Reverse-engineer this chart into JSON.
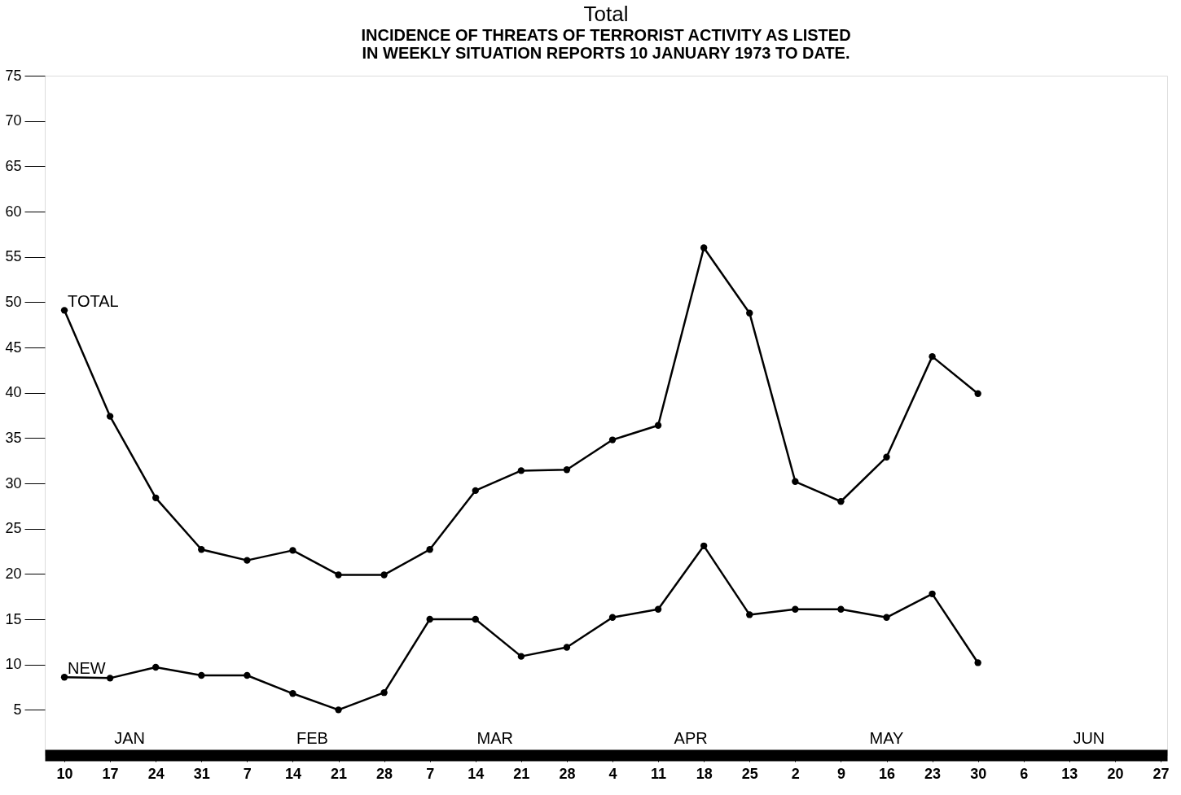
{
  "chart_data": {
    "type": "line",
    "title": "Total",
    "subtitle": "INCIDENCE OF THREATS OF TERRORIST ACTIVITY AS LISTED\nIN WEEKLY SITUATION REPORTS 10 JANUARY 1973 TO DATE.",
    "x": [
      "1973-01-10",
      "1973-01-17",
      "1973-01-24",
      "1973-01-31",
      "1973-02-07",
      "1973-02-14",
      "1973-02-21",
      "1973-02-28",
      "1973-03-07",
      "1973-03-14",
      "1973-03-21",
      "1973-03-28",
      "1973-04-04",
      "1973-04-11",
      "1973-04-18",
      "1973-04-25",
      "1973-05-02",
      "1973-05-09",
      "1973-05-16",
      "1973-05-23",
      "1973-05-30"
    ],
    "series": [
      {
        "name": "TOTAL",
        "color": "#000000",
        "values": [
          49.1,
          37.4,
          28.4,
          22.7,
          21.5,
          22.6,
          19.9,
          19.9,
          22.7,
          29.2,
          31.4,
          31.5,
          34.8,
          36.4,
          56.0,
          48.8,
          30.2,
          28.0,
          32.9,
          44.0,
          39.9
        ]
      },
      {
        "name": "NEW",
        "color": "#000000",
        "values": [
          8.6,
          8.5,
          9.7,
          8.8,
          8.8,
          6.8,
          5.0,
          6.9,
          15.0,
          15.0,
          10.9,
          11.9,
          15.2,
          16.1,
          23.1,
          15.5,
          16.1,
          16.1,
          15.2,
          17.8,
          10.2
        ]
      }
    ],
    "xlim": [
      "1973-01-07",
      "1973-06-28"
    ],
    "xticks": [
      {
        "value": "1973-01-10",
        "label": "10"
      },
      {
        "value": "1973-01-17",
        "label": "17"
      },
      {
        "value": "1973-01-24",
        "label": "24"
      },
      {
        "value": "1973-01-31",
        "label": "31"
      },
      {
        "value": "1973-02-07",
        "label": "7"
      },
      {
        "value": "1973-02-14",
        "label": "14"
      },
      {
        "value": "1973-02-21",
        "label": "21"
      },
      {
        "value": "1973-02-28",
        "label": "28"
      },
      {
        "value": "1973-03-07",
        "label": "7"
      },
      {
        "value": "1973-03-14",
        "label": "14"
      },
      {
        "value": "1973-03-21",
        "label": "21"
      },
      {
        "value": "1973-03-28",
        "label": "28"
      },
      {
        "value": "1973-04-04",
        "label": "4"
      },
      {
        "value": "1973-04-11",
        "label": "11"
      },
      {
        "value": "1973-04-18",
        "label": "18"
      },
      {
        "value": "1973-04-25",
        "label": "25"
      },
      {
        "value": "1973-05-02",
        "label": "2"
      },
      {
        "value": "1973-05-09",
        "label": "9"
      },
      {
        "value": "1973-05-16",
        "label": "16"
      },
      {
        "value": "1973-05-23",
        "label": "23"
      },
      {
        "value": "1973-05-30",
        "label": "30"
      },
      {
        "value": "1973-06-06",
        "label": "6"
      },
      {
        "value": "1973-06-13",
        "label": "13"
      },
      {
        "value": "1973-06-20",
        "label": "20"
      },
      {
        "value": "1973-06-27",
        "label": "27"
      }
    ],
    "x2ticks": [
      {
        "value": "1973-01-20",
        "label": "JAN"
      },
      {
        "value": "1973-02-17",
        "label": "FEB"
      },
      {
        "value": "1973-03-17",
        "label": "MAR"
      },
      {
        "value": "1973-04-16",
        "label": "APR"
      },
      {
        "value": "1973-05-16",
        "label": "MAY"
      },
      {
        "value": "1973-06-16",
        "label": "JUN"
      }
    ],
    "x2lim": [
      "1973-01-07",
      "1973-06-28"
    ],
    "ylim": [
      0,
      75
    ],
    "yticks": [
      5,
      10,
      15,
      20,
      25,
      30,
      35,
      40,
      45,
      50,
      55,
      60,
      65,
      70,
      75
    ],
    "marker": "circle",
    "line_style": "solid",
    "grid": false,
    "legend": "left"
  }
}
